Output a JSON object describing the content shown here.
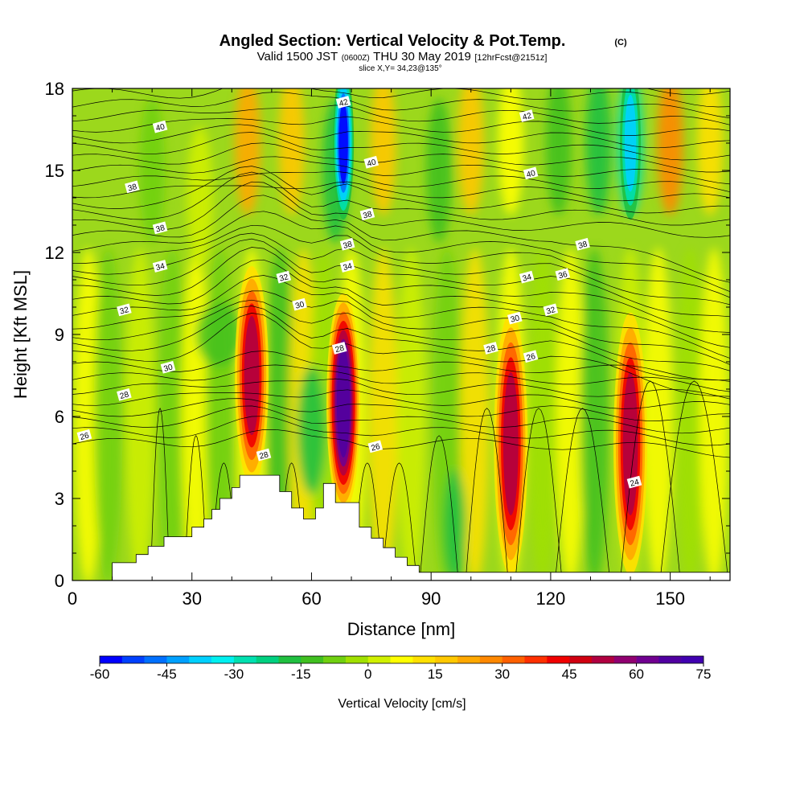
{
  "chart_data": {
    "type": "heatmap",
    "title": "Angled Section: Vertical Velocity & Pot.Temp.",
    "title_suffix": "(C)",
    "subtitle_main": "Valid 1500 JST",
    "subtitle_z": "(0600Z)",
    "subtitle_date": "THU 30 May 2019",
    "subtitle_fcst": "[12hrFcst@2151z]",
    "slice_label": "slice X,Y= 34,23@135°",
    "xlabel": "Distance [nm]",
    "ylabel": "Height [Kft MSL]",
    "xlim": [
      0,
      165
    ],
    "ylim": [
      0,
      18
    ],
    "x_ticks": [
      0,
      30,
      60,
      90,
      120,
      150
    ],
    "y_ticks": [
      0,
      3,
      6,
      9,
      12,
      15,
      18
    ],
    "colorbar": {
      "label": "Vertical Velocity [cm/s]",
      "min": -60,
      "max": 75,
      "step": 5,
      "tick_labels": [
        -60,
        -45,
        -30,
        -15,
        0,
        15,
        30,
        45,
        60,
        75
      ],
      "colors": [
        "#0000ff",
        "#0040ff",
        "#0070ff",
        "#00a0ff",
        "#00d0ff",
        "#00f0f0",
        "#00e0b0",
        "#00d080",
        "#20c040",
        "#40c020",
        "#70d010",
        "#a0e000",
        "#d0f000",
        "#ffff00",
        "#ffe000",
        "#ffc800",
        "#ffa800",
        "#ff8800",
        "#ff6000",
        "#ff3000",
        "#f00000",
        "#d00010",
        "#b00040",
        "#900070",
        "#700090",
        "#5000a0",
        "#4000b0"
      ]
    },
    "updraft_cores": [
      {
        "x": 45,
        "z_range": [
          5,
          10
        ],
        "max_cms": 60
      },
      {
        "x": 68,
        "z_range": [
          4,
          9
        ],
        "max_cms": 75
      },
      {
        "x": 110,
        "z_range": [
          2,
          8
        ],
        "max_cms": 55
      },
      {
        "x": 140,
        "z_range": [
          2,
          8
        ],
        "max_cms": 60
      }
    ],
    "downdraft_cores": [
      {
        "x": 68,
        "z_range": [
          14,
          18
        ],
        "min_cms": -60
      },
      {
        "x": 140,
        "z_range": [
          14,
          18
        ],
        "min_cms": -40
      }
    ],
    "terrain_x": [
      0,
      10,
      10,
      16,
      16,
      19,
      19,
      23,
      23,
      30,
      30,
      33,
      33,
      35,
      35,
      37,
      37,
      40,
      40,
      42,
      42,
      52,
      52,
      55,
      55,
      58,
      58,
      61,
      61,
      63,
      63,
      66,
      66,
      72,
      72,
      75,
      75,
      78,
      78,
      81,
      81,
      84,
      84,
      87,
      87,
      165
    ],
    "terrain_z": [
      0,
      0,
      0.65,
      0.65,
      0.95,
      0.95,
      1.25,
      1.25,
      1.6,
      1.6,
      1.95,
      1.95,
      2.25,
      2.25,
      2.6,
      2.6,
      3.0,
      3.0,
      3.4,
      3.4,
      3.85,
      3.85,
      3.25,
      3.25,
      2.65,
      2.65,
      2.25,
      2.25,
      2.65,
      2.65,
      3.55,
      3.55,
      2.85,
      2.85,
      1.95,
      1.95,
      1.55,
      1.55,
      1.2,
      1.2,
      0.85,
      0.85,
      0.55,
      0.55,
      0.3,
      0.3
    ],
    "theta_labels": [
      {
        "text": "42",
        "x": 68,
        "z": 17.5
      },
      {
        "text": "42",
        "x": 114,
        "z": 17.0
      },
      {
        "text": "40",
        "x": 22,
        "z": 16.6
      },
      {
        "text": "40",
        "x": 75,
        "z": 15.3
      },
      {
        "text": "40",
        "x": 115,
        "z": 14.9
      },
      {
        "text": "38",
        "x": 15,
        "z": 14.4
      },
      {
        "text": "38",
        "x": 74,
        "z": 13.4
      },
      {
        "text": "38",
        "x": 22,
        "z": 12.9
      },
      {
        "text": "38",
        "x": 69,
        "z": 12.3
      },
      {
        "text": "38",
        "x": 128,
        "z": 12.3
      },
      {
        "text": "34",
        "x": 22,
        "z": 11.5
      },
      {
        "text": "34",
        "x": 69,
        "z": 11.5
      },
      {
        "text": "34",
        "x": 114,
        "z": 11.1
      },
      {
        "text": "36",
        "x": 123,
        "z": 11.2
      },
      {
        "text": "32",
        "x": 53,
        "z": 11.1
      },
      {
        "text": "32",
        "x": 13,
        "z": 9.9
      },
      {
        "text": "32",
        "x": 120,
        "z": 9.9
      },
      {
        "text": "30",
        "x": 57,
        "z": 10.1
      },
      {
        "text": "30",
        "x": 111,
        "z": 9.6
      },
      {
        "text": "30",
        "x": 24,
        "z": 7.8
      },
      {
        "text": "28",
        "x": 67,
        "z": 8.5
      },
      {
        "text": "28",
        "x": 105,
        "z": 8.5
      },
      {
        "text": "26",
        "x": 115,
        "z": 8.2
      },
      {
        "text": "28",
        "x": 13,
        "z": 6.8
      },
      {
        "text": "26",
        "x": 3,
        "z": 5.3
      },
      {
        "text": "28",
        "x": 48,
        "z": 4.6
      },
      {
        "text": "26",
        "x": 76,
        "z": 4.9
      },
      {
        "text": "24",
        "x": 141,
        "z": 3.6
      }
    ]
  }
}
